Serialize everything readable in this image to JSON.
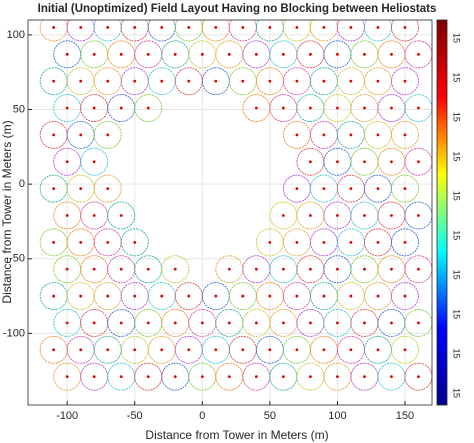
{
  "chart_data": {
    "type": "scatter",
    "title": "Initial (Unoptimized) Field Layout Having no Blocking between Heliostats",
    "xlabel": "Distance from Tower in Meters (m)",
    "ylabel": "Distance from Tower in Meters (m)",
    "xlim": [
      -129,
      170
    ],
    "ylim": [
      -148,
      110
    ],
    "xticks": [
      -100,
      -50,
      0,
      50,
      100,
      150
    ],
    "yticks": [
      -100,
      -50,
      0,
      50,
      100
    ],
    "grid": true,
    "circle_colors": [
      "#e8a33a",
      "#b64ad6",
      "#38c9d6",
      "#e24b4b",
      "#3b6fd6",
      "#7fcf3f",
      "#f08a2a",
      "#d64fa8",
      "#2fb3a0",
      "#c9c933"
    ],
    "dot_color": "#e00000",
    "colorbar_colors": [
      "#00008f",
      "#0000ff",
      "#00ffff",
      "#ffff00",
      "#ff0000",
      "#800000"
    ],
    "colorbar_tick_labels": [
      "15",
      "15",
      "15",
      "15",
      "15",
      "15",
      "15",
      "15",
      "15",
      "15"
    ],
    "x": [
      -110,
      -90,
      -70,
      -50,
      -30,
      -10,
      10,
      30,
      50,
      70,
      90,
      110,
      130,
      150,
      -100,
      -80,
      -60,
      -40,
      -20,
      0,
      20,
      40,
      60,
      80,
      100,
      120,
      140,
      160,
      -110,
      -90,
      -70,
      -50,
      -30,
      -10,
      10,
      30,
      50,
      70,
      90,
      110,
      130,
      150,
      -100,
      -80,
      -60,
      -40,
      40,
      60,
      80,
      100,
      120,
      140,
      160,
      -110,
      -90,
      -70,
      70,
      90,
      110,
      130,
      150,
      -100,
      -80,
      80,
      100,
      120,
      140,
      160,
      -110,
      -90,
      -70,
      70,
      90,
      110,
      130,
      150,
      -100,
      -80,
      -60,
      60,
      80,
      100,
      120,
      140,
      160,
      -110,
      -90,
      -70,
      -50,
      50,
      70,
      90,
      110,
      130,
      150,
      -100,
      -80,
      -60,
      -40,
      -20,
      20,
      40,
      60,
      80,
      100,
      120,
      140,
      160,
      -110,
      -90,
      -70,
      -50,
      -30,
      -10,
      10,
      30,
      50,
      70,
      90,
      110,
      130,
      150,
      -100,
      -80,
      -60,
      -40,
      -20,
      0,
      20,
      40,
      60,
      80,
      100,
      120,
      140,
      160,
      -110,
      -90,
      -70,
      -50,
      -30,
      -10,
      10,
      30,
      50,
      70,
      90,
      110,
      130,
      150,
      -100,
      -80,
      -60,
      -40,
      -20,
      0,
      20,
      40,
      60,
      80,
      100,
      120,
      140,
      160
    ],
    "values": [
      105,
      105,
      105,
      105,
      105,
      105,
      105,
      105,
      105,
      105,
      105,
      105,
      105,
      105,
      87,
      87,
      87,
      87,
      87,
      87,
      87,
      87,
      87,
      87,
      87,
      87,
      87,
      87,
      69,
      69,
      69,
      69,
      69,
      69,
      69,
      69,
      69,
      69,
      69,
      69,
      69,
      69,
      51,
      51,
      51,
      51,
      51,
      51,
      51,
      51,
      51,
      51,
      51,
      33,
      33,
      33,
      33,
      33,
      33,
      33,
      33,
      15,
      15,
      15,
      15,
      15,
      15,
      15,
      -3,
      -3,
      -3,
      -3,
      -3,
      -3,
      -3,
      -3,
      -21,
      -21,
      -21,
      -21,
      -21,
      -21,
      -21,
      -21,
      -21,
      -39,
      -39,
      -39,
      -39,
      -39,
      -39,
      -39,
      -39,
      -39,
      -39,
      -57,
      -57,
      -57,
      -57,
      -57,
      -57,
      -57,
      -57,
      -57,
      -57,
      -57,
      -57,
      -57,
      -75,
      -75,
      -75,
      -75,
      -75,
      -75,
      -75,
      -75,
      -75,
      -75,
      -75,
      -75,
      -75,
      -75,
      -93,
      -93,
      -93,
      -93,
      -93,
      -93,
      -93,
      -93,
      -93,
      -93,
      -93,
      -93,
      -93,
      -93,
      -111,
      -111,
      -111,
      -111,
      -111,
      -111,
      -111,
      -111,
      -111,
      -111,
      -111,
      -111,
      -111,
      -111,
      -129,
      -129,
      -129,
      -129,
      -129,
      -129,
      -129,
      -129,
      -129,
      -129,
      -129,
      -129,
      -129,
      -129
    ]
  }
}
